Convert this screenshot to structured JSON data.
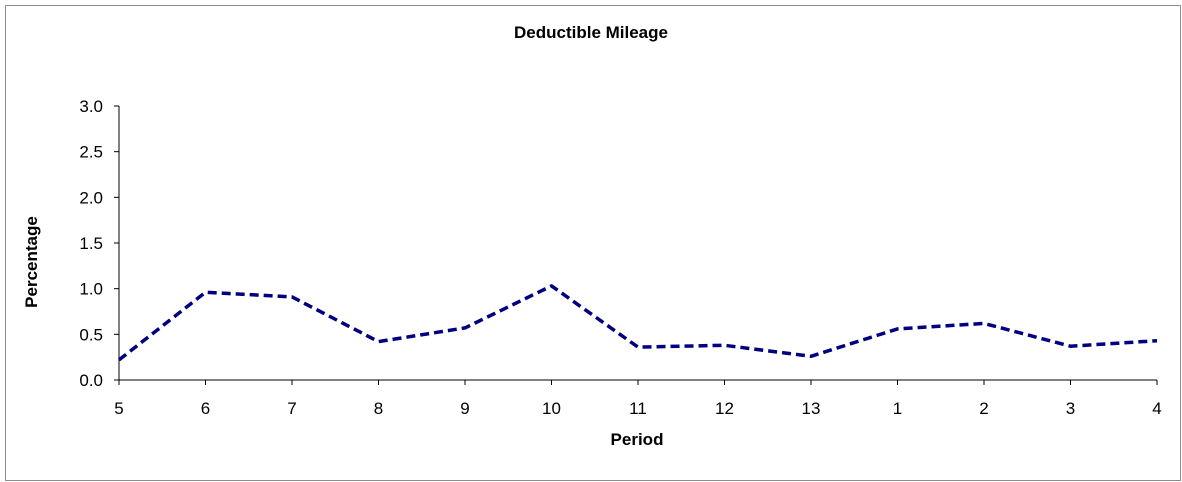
{
  "chart_data": {
    "type": "line",
    "title": "Deductible Mileage",
    "xlabel": "Period",
    "ylabel": "Percentage",
    "categories": [
      "5",
      "6",
      "7",
      "8",
      "9",
      "10",
      "11",
      "12",
      "13",
      "1",
      "2",
      "3",
      "4"
    ],
    "series": [
      {
        "values": [
          0.22,
          0.96,
          0.91,
          0.42,
          0.57,
          1.03,
          0.36,
          0.38,
          0.26,
          0.56,
          0.62,
          0.37,
          0.43
        ],
        "color": "#000080",
        "style": "dashed"
      }
    ],
    "ylim": [
      0,
      3.0
    ],
    "yticks": [
      "0.0",
      "0.5",
      "1.0",
      "1.5",
      "2.0",
      "2.5",
      "3.0"
    ],
    "grid": false,
    "legend": "none"
  }
}
